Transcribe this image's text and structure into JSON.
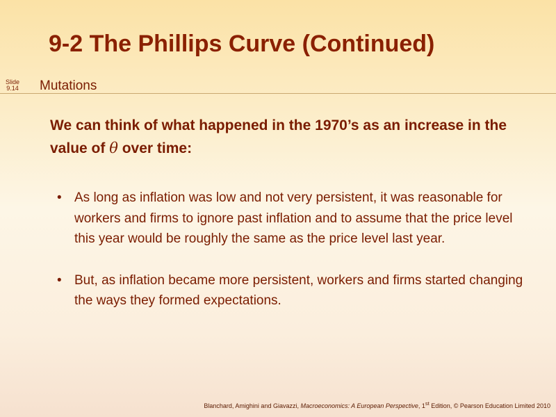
{
  "header": {
    "title": "9-2  The Phillips Curve (Continued)",
    "slide_label": [
      "Slide",
      "9.14"
    ],
    "section": "Mutations"
  },
  "body": {
    "intro": [
      "We can think of what happened in the 1970’s as an increase in the value of ",
      "θ",
      " over time:"
    ],
    "bullets": [
      "As long as inflation was low and not very persistent, it was reasonable for workers and firms to ignore past inflation and to assume that the price level this year would be roughly the same as the price level last year.",
      "But, as inflation became more persistent, workers and firms started changing the ways they formed expectations."
    ]
  },
  "footer": {
    "parts": [
      "Blanchard, Amighini and Giavazzi, ",
      "Macroeconomics: A European Perspective",
      ", 1",
      "st",
      " Edition, © Pearson Education Limited 2010"
    ]
  }
}
